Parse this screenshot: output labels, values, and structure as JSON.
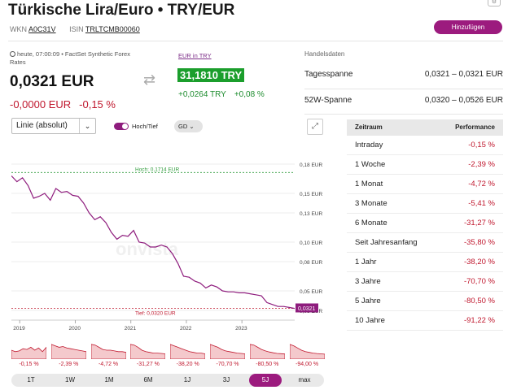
{
  "header": {
    "title": "Türkische Lira/Euro • TRY/EUR",
    "wkn_label": "WKN",
    "wkn": "A0C31V",
    "isin_label": "ISIN",
    "isin": "TRLTCMB00060",
    "add_button": "Hinzufügen"
  },
  "quote": {
    "source": "heute, 07:00:09 • FactSet Synthetic Forex Rates",
    "price": "0,0321 EUR",
    "change_abs": "-0,0000 EUR",
    "change_pct": "-0,15 %"
  },
  "inverse": {
    "link": "EUR in TRY",
    "price": "31,1810 TRY",
    "change_abs": "+0,0264 TRY",
    "change_pct": "+0,08 %"
  },
  "handelsdaten": {
    "title": "Handelsdaten",
    "rows": [
      {
        "label": "Tagesspanne",
        "value": "0,0321  –  0,0321 EUR"
      },
      {
        "label": "52W-Spanne",
        "value": "0,0320  –  0,0526 EUR"
      }
    ]
  },
  "controls": {
    "chart_type": "Linie (absolut)",
    "toggle_label": "Hoch/Tief",
    "gd_label": "GD"
  },
  "chart_data": {
    "type": "line",
    "x_ticks": [
      "2019",
      "2020",
      "2021",
      "2022",
      "2023"
    ],
    "y_ticks": [
      "0,18 EUR",
      "0,15 EUR",
      "0,13 EUR",
      "0,10 EUR",
      "0,08 EUR",
      "0,05 EUR",
      "0,03 EUR"
    ],
    "ylim": [
      0.02,
      0.185
    ],
    "xlim": [
      2018.85,
      2023.95
    ],
    "high_label": "Hoch: 0,1714 EUR",
    "high_value": 0.1714,
    "low_label": "Tief: 0,0320 EUR",
    "low_value": 0.032,
    "current_label": "0,0321",
    "current_value": 0.0321,
    "watermark": "onvista",
    "series": [
      {
        "x": [
          2018.85,
          2018.95,
          2019.05,
          2019.15,
          2019.25,
          2019.35,
          2019.45,
          2019.55,
          2019.65,
          2019.75,
          2019.85,
          2019.95,
          2020.05,
          2020.15,
          2020.25,
          2020.35,
          2020.45,
          2020.55,
          2020.65,
          2020.75,
          2020.85,
          2020.95,
          2021.05,
          2021.15,
          2021.25,
          2021.35,
          2021.45,
          2021.55,
          2021.65,
          2021.75,
          2021.85,
          2021.95,
          2022.05,
          2022.15,
          2022.25,
          2022.35,
          2022.45,
          2022.55,
          2022.65,
          2022.75,
          2022.85,
          2022.95,
          2023.05,
          2023.15,
          2023.25,
          2023.35,
          2023.45,
          2023.55,
          2023.65,
          2023.75,
          2023.85,
          2023.95
        ],
        "y": [
          0.168,
          0.162,
          0.166,
          0.158,
          0.145,
          0.147,
          0.15,
          0.143,
          0.155,
          0.151,
          0.152,
          0.148,
          0.147,
          0.14,
          0.13,
          0.123,
          0.126,
          0.12,
          0.11,
          0.103,
          0.107,
          0.106,
          0.112,
          0.1,
          0.099,
          0.095,
          0.095,
          0.097,
          0.095,
          0.088,
          0.078,
          0.065,
          0.064,
          0.06,
          0.058,
          0.053,
          0.056,
          0.054,
          0.05,
          0.049,
          0.049,
          0.048,
          0.048,
          0.047,
          0.046,
          0.045,
          0.038,
          0.036,
          0.034,
          0.034,
          0.033,
          0.032
        ]
      }
    ]
  },
  "performance": {
    "head_left": "Zeitraum",
    "head_right": "Performance",
    "rows": [
      {
        "label": "Intraday",
        "value": "-0,15 %"
      },
      {
        "label": "1 Woche",
        "value": "-2,39 %"
      },
      {
        "label": "1 Monat",
        "value": "-4,72 %"
      },
      {
        "label": "3 Monate",
        "value": "-5,41 %"
      },
      {
        "label": "6 Monate",
        "value": "-31,27 %"
      },
      {
        "label": "Seit Jahresanfang",
        "value": "-35,80 %"
      },
      {
        "label": "1 Jahr",
        "value": "-38,20 %"
      },
      {
        "label": "3 Jahre",
        "value": "-70,70 %"
      },
      {
        "label": "5 Jahre",
        "value": "-80,50 %"
      },
      {
        "label": "10 Jahre",
        "value": "-91,22 %"
      }
    ]
  },
  "mini_charts": [
    {
      "label": "-0,15 %"
    },
    {
      "label": "-2,39 %"
    },
    {
      "label": "-4,72 %"
    },
    {
      "label": "-31,27 %"
    },
    {
      "label": "-38,20 %"
    },
    {
      "label": "-70,70 %"
    },
    {
      "label": "-80,50 %"
    },
    {
      "label": "-94,00 %"
    }
  ],
  "ranges": {
    "active": "5J",
    "buttons": [
      "1T",
      "1W",
      "1M",
      "6M",
      "1J",
      "3J",
      "5J",
      "max"
    ]
  },
  "colors": {
    "accent": "#9c1b7e",
    "line": "#8e1c7d",
    "negative": "#c0182e",
    "positive": "#1e8c2f",
    "high_line": "#2e9b3a",
    "low_line": "#c0182e"
  }
}
